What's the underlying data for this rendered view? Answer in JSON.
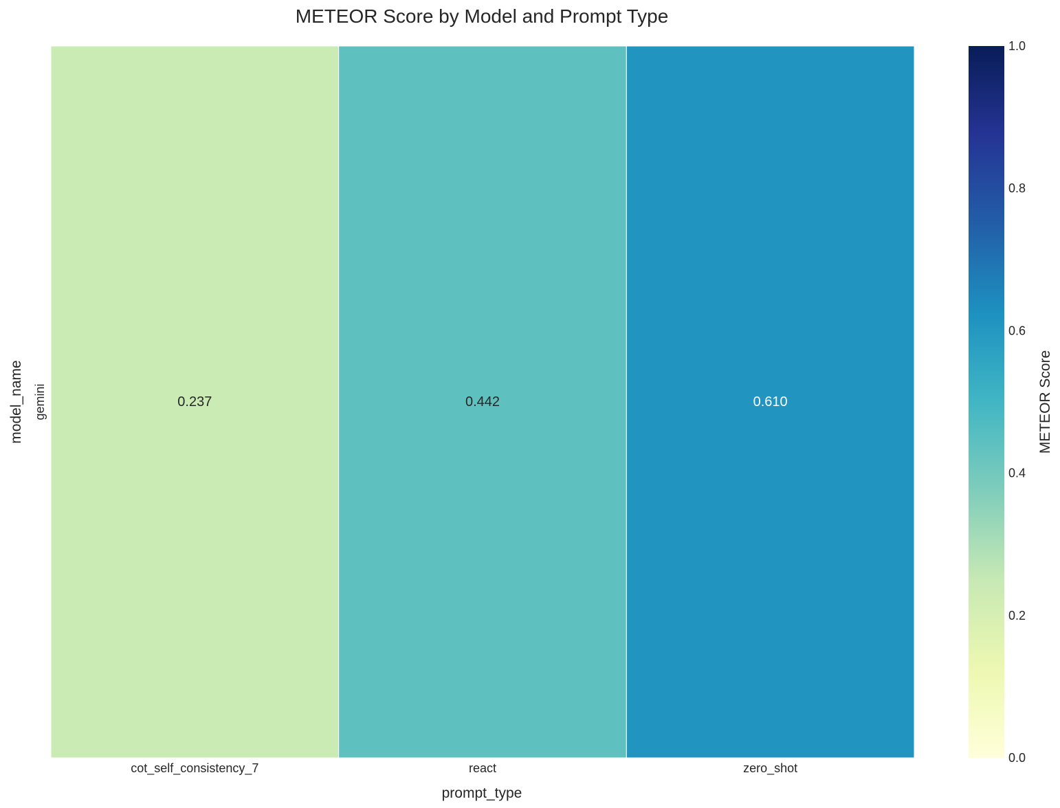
{
  "chart_data": {
    "type": "heatmap",
    "title": "METEOR Score by Model and Prompt Type",
    "xlabel": "prompt_type",
    "ylabel": "model_name",
    "x_categories": [
      "cot_self_consistency_7",
      "react",
      "zero_shot"
    ],
    "y_categories": [
      "gemini"
    ],
    "values": [
      [
        0.237,
        0.442,
        0.61
      ]
    ],
    "value_labels": [
      [
        "0.237",
        "0.442",
        "0.610"
      ]
    ],
    "colormap": "YlGnBu",
    "vmin": 0.0,
    "vmax": 1.0,
    "colorbar": {
      "label": "METEOR Score",
      "ticks": [
        0.0,
        0.2,
        0.4,
        0.6,
        0.8,
        1.0
      ],
      "tick_labels": [
        "0.0",
        "0.2",
        "0.4",
        "0.6",
        "0.8",
        "1.0"
      ],
      "placement": "right"
    },
    "cell_border_color": "#ffffff"
  }
}
